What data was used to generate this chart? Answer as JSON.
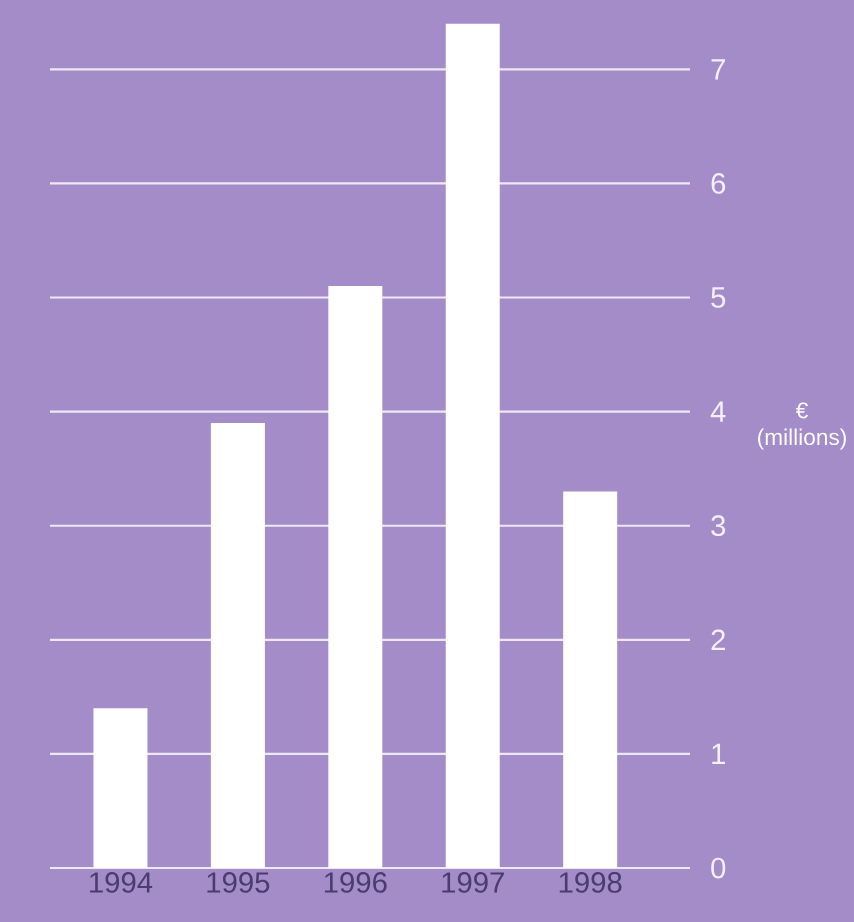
{
  "chart_data": {
    "type": "bar",
    "ylabel": "€ (millions)",
    "categories": [
      "1994",
      "1995",
      "1996",
      "1997",
      "1998"
    ],
    "values": [
      1.4,
      3.9,
      5.1,
      7.4,
      3.3
    ],
    "color": "#ffffff",
    "ylim": [
      0,
      7.45
    ],
    "yticks": [
      0,
      1,
      2,
      3,
      4,
      5,
      6,
      7
    ],
    "grid": "y"
  }
}
